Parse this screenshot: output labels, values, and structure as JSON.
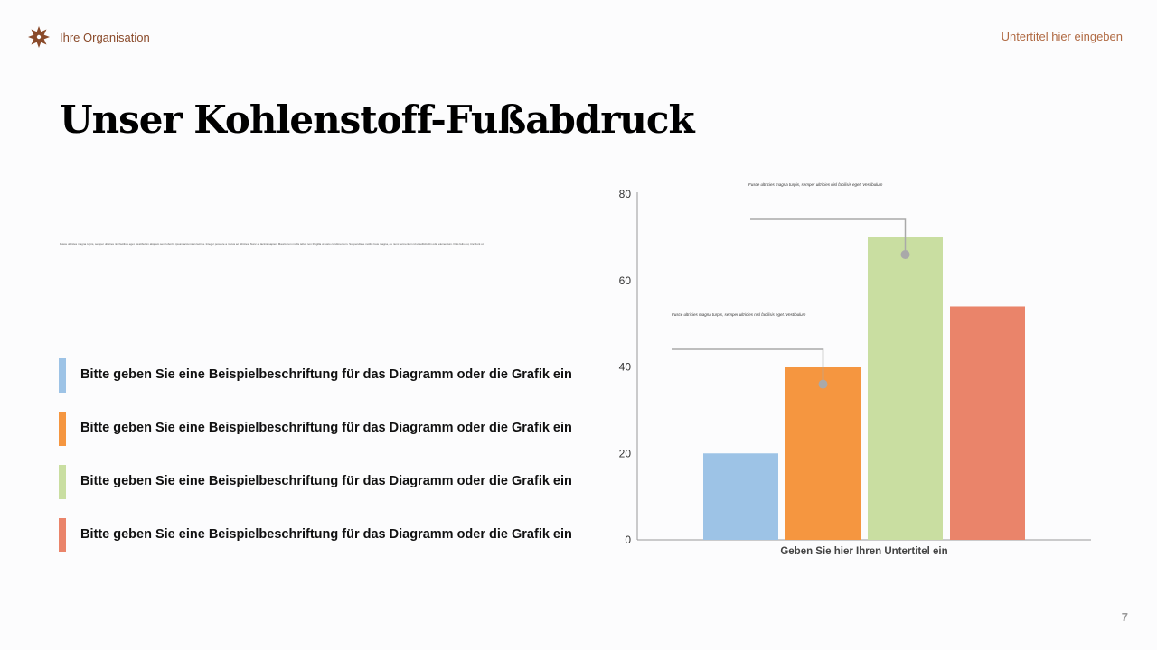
{
  "header": {
    "org_name": "Ihre Organisation",
    "subtitle": "Untertitel hier eingeben",
    "logo_icon": "sun-flower-icon",
    "accent_color": "#8a4a2a"
  },
  "title": "Unser Kohlenstoff-Fußabdruck",
  "body_text": "Fusce ultricies magna turpis, semper ultricies nisl facilisis eget. Vestibulum aliquam sem lobortis ipsum accumsan lacinia. Integer posuere a metus ac ultricies. Nunc et lacinia sapien. Mauris non mollis tellus non fringilla ut justo condimentum. Suspendisse mollis risus magna, eu nunc fermentum id ut sollicitudin odio elementum. Duis felis dui, tincidunt ut nec condimentum.",
  "legend": [
    {
      "label": "Bitte geben Sie eine Beispielbeschriftung für das Diagramm oder die Grafik ein",
      "color": "#9dc3e6"
    },
    {
      "label": "Bitte geben Sie eine Beispielbeschriftung für das Diagramm oder die Grafik ein",
      "color": "#f59640"
    },
    {
      "label": "Bitte geben Sie eine Beispielbeschriftung für das Diagramm oder die Grafik ein",
      "color": "#c9dea1"
    },
    {
      "label": "Bitte geben Sie eine Beispielbeschriftung für das Diagramm oder die Grafik ein",
      "color": "#ea846a"
    }
  ],
  "chart_data": {
    "type": "bar",
    "categories": [
      "Geben Sie hier Ihren Untertitel ein"
    ],
    "series": [
      {
        "values": [
          20
        ],
        "color": "#9dc3e6"
      },
      {
        "values": [
          40
        ],
        "color": "#f59640"
      },
      {
        "values": [
          70
        ],
        "color": "#c9dea1"
      },
      {
        "values": [
          54
        ],
        "color": "#ea846a"
      }
    ],
    "title": "",
    "xlabel": "Geben Sie hier Ihren Untertitel ein",
    "ylabel": "",
    "ylim": [
      0,
      80
    ],
    "yticks": [
      0,
      20,
      40,
      60,
      80
    ],
    "grid": false,
    "annotations": [
      {
        "text": "Fusce ultricies magna turpis, semper ultricies nisl facilisis eget. Vestibulum",
        "series_index": 2,
        "value": 66
      },
      {
        "text": "Fusce ultricies magna turpis, semper ultricies nisl facilisis eget. Vestibulum",
        "series_index": 1,
        "value": 36
      }
    ]
  },
  "footer": {
    "page_number": "7"
  }
}
